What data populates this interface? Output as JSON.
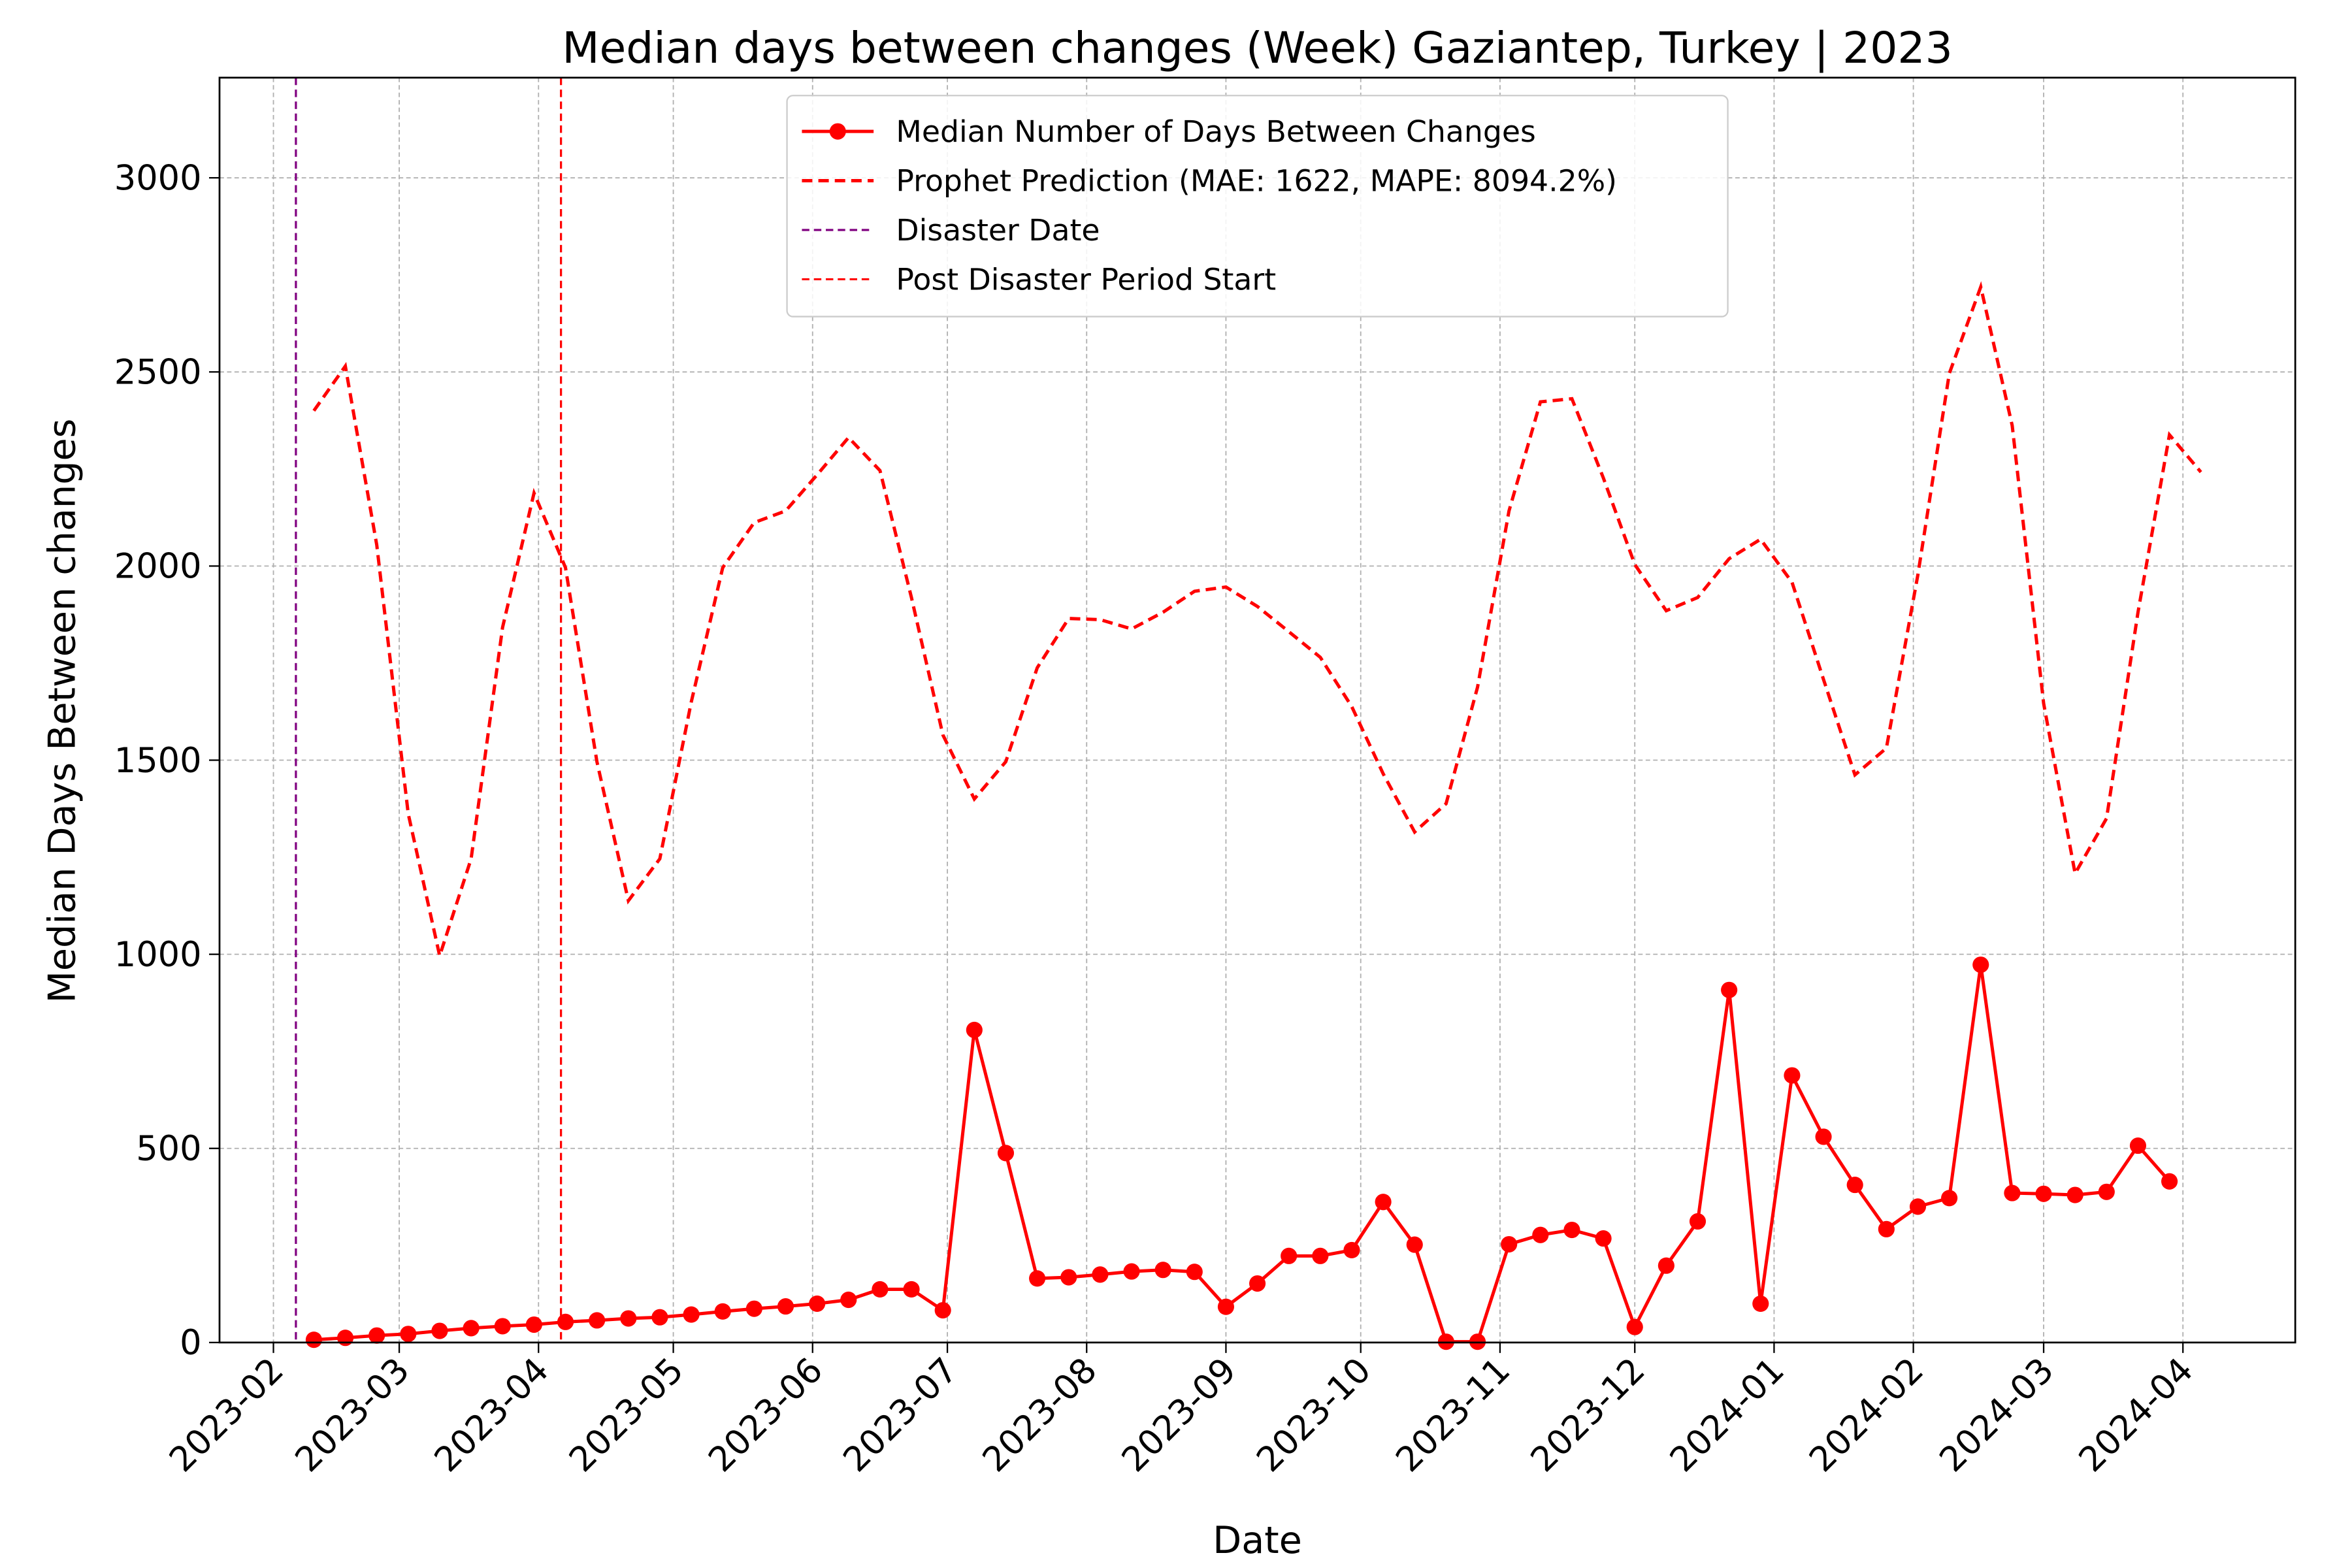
{
  "chart_data": {
    "type": "line",
    "title": "Median days between changes (Week) Gaziantep, Turkey | 2023",
    "xlabel": "Date",
    "ylabel": "Median Days Between changes",
    "x": [
      "2023-02-10",
      "2023-02-17",
      "2023-02-24",
      "2023-03-03",
      "2023-03-10",
      "2023-03-17",
      "2023-03-24",
      "2023-03-31",
      "2023-04-07",
      "2023-04-14",
      "2023-04-21",
      "2023-04-28",
      "2023-05-05",
      "2023-05-12",
      "2023-05-19",
      "2023-05-26",
      "2023-06-02",
      "2023-06-09",
      "2023-06-16",
      "2023-06-23",
      "2023-06-30",
      "2023-07-07",
      "2023-07-14",
      "2023-07-21",
      "2023-07-28",
      "2023-08-04",
      "2023-08-11",
      "2023-08-18",
      "2023-08-25",
      "2023-09-01",
      "2023-09-08",
      "2023-09-15",
      "2023-09-22",
      "2023-09-29",
      "2023-10-06",
      "2023-10-13",
      "2023-10-20",
      "2023-10-27",
      "2023-11-03",
      "2023-11-10",
      "2023-11-17",
      "2023-11-24",
      "2023-12-01",
      "2023-12-08",
      "2023-12-15",
      "2023-12-22",
      "2023-12-29",
      "2024-01-05",
      "2024-01-12",
      "2024-01-19",
      "2024-01-26",
      "2024-02-02",
      "2024-02-09",
      "2024-02-16",
      "2024-02-23",
      "2024-03-01",
      "2024-03-08",
      "2024-03-15",
      "2024-03-22",
      "2024-03-29",
      "2024-04-05"
    ],
    "series": [
      {
        "name": "Median Number of Days Between Changes",
        "color": "#ff0000",
        "style": "solid",
        "values": [
          7,
          12,
          18,
          22,
          30,
          37,
          42,
          46,
          53,
          57,
          62,
          65,
          72,
          80,
          87,
          93,
          100,
          110,
          137,
          137,
          83,
          805,
          488,
          165,
          168,
          175,
          183,
          187,
          182,
          92,
          152,
          223,
          223,
          238,
          362,
          252,
          2,
          2,
          253,
          277,
          290,
          268,
          40,
          198,
          312,
          908,
          100,
          688,
          530,
          406,
          292,
          350,
          372,
          973,
          385,
          383,
          380,
          388,
          507,
          415,
          null
        ]
      },
      {
        "name": "Prophet Prediction (MAE: 1622, MAPE: 8094.2%)",
        "color": "#ff0000",
        "style": "dashed",
        "values": [
          2400,
          2515,
          2054,
          1362,
          996,
          1246,
          1842,
          2188,
          1996,
          1496,
          1138,
          1246,
          1650,
          1996,
          2112,
          2142,
          2235,
          2331,
          2246,
          1919,
          1565,
          1400,
          1496,
          1738,
          1865,
          1862,
          1838,
          1881,
          1935,
          1946,
          1896,
          1831,
          1765,
          1638,
          1465,
          1315,
          1388,
          1688,
          2142,
          2423,
          2431,
          2227,
          2004,
          1885,
          1919,
          2019,
          2069,
          1958,
          1708,
          1462,
          1531,
          1977,
          2496,
          2719,
          2362,
          1646,
          1208,
          1350,
          1881,
          2338,
          2242
        ]
      }
    ],
    "vlines": [
      {
        "name": "Disaster Date",
        "x": "2023-02-06",
        "color": "#800080"
      },
      {
        "name": "Post Disaster Period Start",
        "x": "2023-04-06",
        "color": "#ff0000"
      }
    ],
    "xlim": [
      "2023-01-20",
      "2024-04-26"
    ],
    "xticks": [
      {
        "value": "2023-02-01",
        "label": "2023-02"
      },
      {
        "value": "2023-03-01",
        "label": "2023-03"
      },
      {
        "value": "2023-04-01",
        "label": "2023-04"
      },
      {
        "value": "2023-05-01",
        "label": "2023-05"
      },
      {
        "value": "2023-06-01",
        "label": "2023-06"
      },
      {
        "value": "2023-07-01",
        "label": "2023-07"
      },
      {
        "value": "2023-08-01",
        "label": "2023-08"
      },
      {
        "value": "2023-09-01",
        "label": "2023-09"
      },
      {
        "value": "2023-10-01",
        "label": "2023-10"
      },
      {
        "value": "2023-11-01",
        "label": "2023-11"
      },
      {
        "value": "2023-12-01",
        "label": "2023-12"
      },
      {
        "value": "2024-01-01",
        "label": "2024-01"
      },
      {
        "value": "2024-02-01",
        "label": "2024-02"
      },
      {
        "value": "2024-03-01",
        "label": "2024-03"
      },
      {
        "value": "2024-04-01",
        "label": "2024-04"
      }
    ],
    "ylim": [
      0,
      3258
    ],
    "yticks": [
      0,
      500,
      1000,
      1500,
      2000,
      2500,
      3000
    ],
    "grid": true,
    "legend": "upper center"
  }
}
